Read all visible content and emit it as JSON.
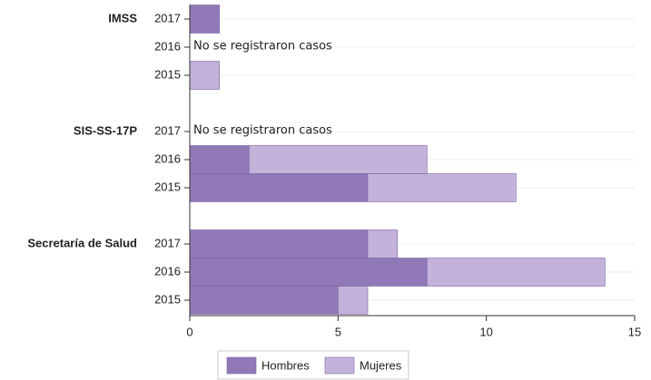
{
  "chart_data": {
    "type": "stacked-barh",
    "groups": [
      "IMSS",
      "SIS-SS-17P",
      "Secretaría de Salud"
    ],
    "categories": [
      "2017",
      "2016",
      "2015",
      "2017",
      "2016",
      "2015",
      "2017",
      "2016",
      "2015"
    ],
    "series": [
      {
        "name": "Hombres",
        "color": "#9179b8",
        "values": [
          1,
          null,
          0,
          null,
          2,
          6,
          6,
          8,
          5
        ]
      },
      {
        "name": "Mujeres",
        "color": "#c3b3da",
        "values": [
          0,
          null,
          1,
          null,
          6,
          5,
          1,
          6,
          1
        ]
      }
    ],
    "annotations": [
      {
        "text": "No se  registraron casos",
        "group": "IMSS",
        "category": "2016"
      },
      {
        "text": "No se  registraron casos",
        "group": "SIS-SS-17P",
        "category": "2017"
      }
    ],
    "xlim": [
      0,
      15
    ],
    "xticks": [
      0,
      5,
      10,
      15
    ],
    "grid": true,
    "legend": "bottom"
  }
}
